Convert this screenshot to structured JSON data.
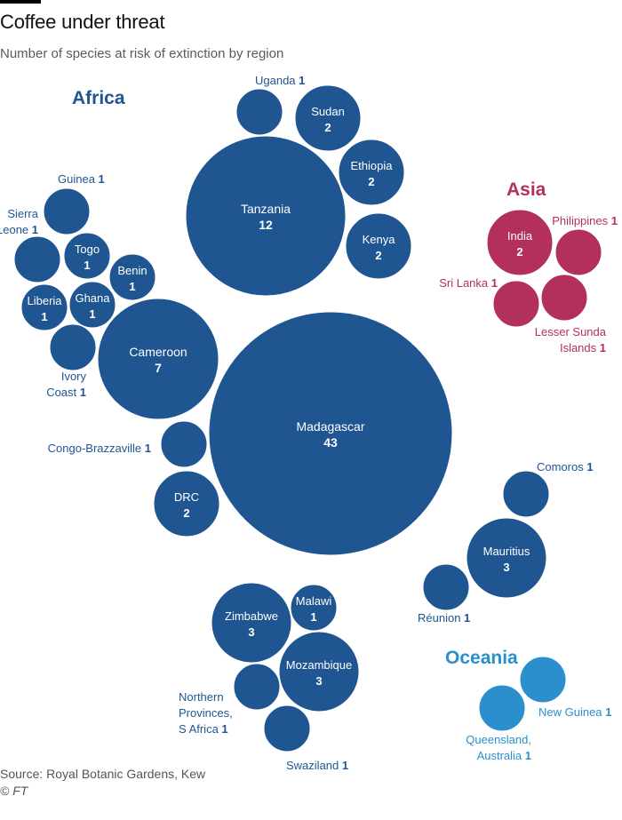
{
  "title": "Coffee under threat",
  "subtitle": "Number of species at risk of extinction by region",
  "source": "Source: Royal Botanic Gardens, Kew",
  "copyright": "© FT",
  "colors": {
    "Africa": "#1f5591",
    "Asia": "#b3305c",
    "Oceania": "#2a8fcc",
    "inner_text": "#ffffff"
  },
  "chart_data": {
    "type": "bubble",
    "title": "Coffee under threat",
    "subtitle": "Number of species at risk of extinction by region",
    "value_label": "Number of species at risk of extinction",
    "groups": [
      {
        "name": "Africa",
        "color": "#1f5591"
      },
      {
        "name": "Asia",
        "color": "#b3305c"
      },
      {
        "name": "Oceania",
        "color": "#2a8fcc"
      }
    ],
    "points": [
      {
        "region": "Madagascar",
        "value": 43,
        "group": "Africa"
      },
      {
        "region": "Tanzania",
        "value": 12,
        "group": "Africa"
      },
      {
        "region": "Cameroon",
        "value": 7,
        "group": "Africa"
      },
      {
        "region": "Mauritius",
        "value": 3,
        "group": "Africa"
      },
      {
        "region": "Zimbabwe",
        "value": 3,
        "group": "Africa"
      },
      {
        "region": "Mozambique",
        "value": 3,
        "group": "Africa"
      },
      {
        "region": "Sudan",
        "value": 2,
        "group": "Africa"
      },
      {
        "region": "Ethiopia",
        "value": 2,
        "group": "Africa"
      },
      {
        "region": "Kenya",
        "value": 2,
        "group": "Africa"
      },
      {
        "region": "DRC",
        "value": 2,
        "group": "Africa"
      },
      {
        "region": "Uganda",
        "value": 1,
        "group": "Africa"
      },
      {
        "region": "Guinea",
        "value": 1,
        "group": "Africa"
      },
      {
        "region": "Sierra Leone",
        "value": 1,
        "group": "Africa"
      },
      {
        "region": "Togo",
        "value": 1,
        "group": "Africa"
      },
      {
        "region": "Benin",
        "value": 1,
        "group": "Africa"
      },
      {
        "region": "Liberia",
        "value": 1,
        "group": "Africa"
      },
      {
        "region": "Ghana",
        "value": 1,
        "group": "Africa"
      },
      {
        "region": "Ivory Coast",
        "value": 1,
        "group": "Africa"
      },
      {
        "region": "Congo-Brazzaville",
        "value": 1,
        "group": "Africa"
      },
      {
        "region": "Comoros",
        "value": 1,
        "group": "Africa"
      },
      {
        "region": "Réunion",
        "value": 1,
        "group": "Africa"
      },
      {
        "region": "Malawi",
        "value": 1,
        "group": "Africa"
      },
      {
        "region": "Northern Provinces, S Africa",
        "value": 1,
        "group": "Africa"
      },
      {
        "region": "Swaziland",
        "value": 1,
        "group": "Africa"
      },
      {
        "region": "India",
        "value": 2,
        "group": "Asia"
      },
      {
        "region": "Philippines",
        "value": 1,
        "group": "Asia"
      },
      {
        "region": "Sri Lanka",
        "value": 1,
        "group": "Asia"
      },
      {
        "region": "Lesser Sunda Islands",
        "value": 1,
        "group": "Asia"
      },
      {
        "region": "New Guinea",
        "value": 1,
        "group": "Oceania"
      },
      {
        "region": "Queensland, Australia",
        "value": 1,
        "group": "Oceania"
      }
    ]
  }
}
